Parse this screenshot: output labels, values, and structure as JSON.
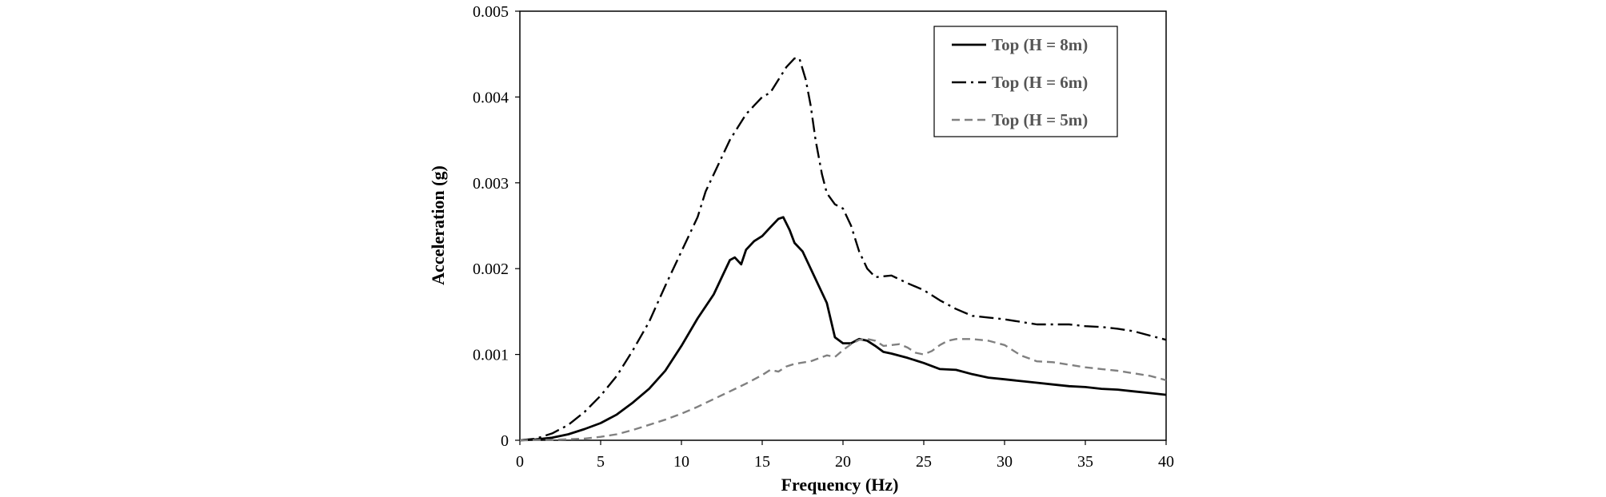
{
  "chart_data": {
    "type": "line",
    "xlabel": "Frequency (Hz)",
    "ylabel": "Acceleration (g)",
    "xlim": [
      0,
      40
    ],
    "ylim": [
      0,
      0.005
    ],
    "x_ticks": [
      "0",
      "5",
      "10",
      "15",
      "20",
      "25",
      "30",
      "35",
      "40"
    ],
    "y_ticks": [
      "0",
      "0.001",
      "0.002",
      "0.003",
      "0.004",
      "0.005"
    ],
    "grid": false,
    "legend_position": "top-right",
    "series": [
      {
        "name": "Top (H = 8m)",
        "style": "solid",
        "color": "#000000",
        "points": [
          [
            0,
            0
          ],
          [
            1,
            1e-05
          ],
          [
            2,
            3e-05
          ],
          [
            3,
            7e-05
          ],
          [
            4,
            0.00013
          ],
          [
            5,
            0.0002
          ],
          [
            6,
            0.0003
          ],
          [
            7,
            0.00044
          ],
          [
            8,
            0.0006
          ],
          [
            9,
            0.00081
          ],
          [
            10,
            0.0011
          ],
          [
            11,
            0.00142
          ],
          [
            12,
            0.0017
          ],
          [
            12.5,
            0.0019
          ],
          [
            13,
            0.0021
          ],
          [
            13.3,
            0.00213
          ],
          [
            13.7,
            0.00205
          ],
          [
            14,
            0.00222
          ],
          [
            14.5,
            0.00232
          ],
          [
            15,
            0.00238
          ],
          [
            15.5,
            0.00248
          ],
          [
            16,
            0.00258
          ],
          [
            16.3,
            0.0026
          ],
          [
            16.7,
            0.00245
          ],
          [
            17,
            0.0023
          ],
          [
            17.5,
            0.0022
          ],
          [
            18,
            0.002
          ],
          [
            18.5,
            0.0018
          ],
          [
            19,
            0.0016
          ],
          [
            19.5,
            0.0012
          ],
          [
            20,
            0.00113
          ],
          [
            20.5,
            0.00113
          ],
          [
            21,
            0.00118
          ],
          [
            21.5,
            0.00116
          ],
          [
            22,
            0.0011
          ],
          [
            22.5,
            0.00103
          ],
          [
            23,
            0.00101
          ],
          [
            24,
            0.00096
          ],
          [
            25,
            0.0009
          ],
          [
            26,
            0.00083
          ],
          [
            27,
            0.00082
          ],
          [
            28,
            0.00077
          ],
          [
            29,
            0.00073
          ],
          [
            30,
            0.00071
          ],
          [
            31,
            0.00069
          ],
          [
            32,
            0.00067
          ],
          [
            33,
            0.00065
          ],
          [
            34,
            0.00063
          ],
          [
            35,
            0.00062
          ],
          [
            36,
            0.0006
          ],
          [
            37,
            0.00059
          ],
          [
            38,
            0.00057
          ],
          [
            39,
            0.00055
          ],
          [
            40,
            0.00053
          ]
        ]
      },
      {
        "name": "Top (H = 6m)",
        "style": "dashdot",
        "color": "#000000",
        "points": [
          [
            0,
            0
          ],
          [
            1,
            2e-05
          ],
          [
            2,
            8e-05
          ],
          [
            3,
            0.00018
          ],
          [
            4,
            0.00033
          ],
          [
            5,
            0.00052
          ],
          [
            6,
            0.00075
          ],
          [
            7,
            0.00105
          ],
          [
            8,
            0.00138
          ],
          [
            9,
            0.0018
          ],
          [
            10,
            0.0022
          ],
          [
            11,
            0.0026
          ],
          [
            11.5,
            0.0029
          ],
          [
            12,
            0.0031
          ],
          [
            12.5,
            0.0033
          ],
          [
            13,
            0.0035
          ],
          [
            13.5,
            0.00365
          ],
          [
            14,
            0.0038
          ],
          [
            14.5,
            0.0039
          ],
          [
            15,
            0.004
          ],
          [
            15.5,
            0.00405
          ],
          [
            16,
            0.0042
          ],
          [
            16.5,
            0.00435
          ],
          [
            17,
            0.00445
          ],
          [
            17.3,
            0.00445
          ],
          [
            17.7,
            0.0042
          ],
          [
            18,
            0.0039
          ],
          [
            18.3,
            0.0035
          ],
          [
            18.7,
            0.0031
          ],
          [
            19,
            0.00288
          ],
          [
            19.5,
            0.00275
          ],
          [
            20,
            0.0027
          ],
          [
            20.5,
            0.0025
          ],
          [
            21,
            0.0022
          ],
          [
            21.5,
            0.002
          ],
          [
            22,
            0.0019
          ],
          [
            23,
            0.00192
          ],
          [
            24,
            0.00183
          ],
          [
            25,
            0.00175
          ],
          [
            26,
            0.00163
          ],
          [
            27,
            0.00153
          ],
          [
            28,
            0.00145
          ],
          [
            29,
            0.00143
          ],
          [
            30,
            0.00141
          ],
          [
            31,
            0.00138
          ],
          [
            32,
            0.00135
          ],
          [
            33,
            0.00135
          ],
          [
            34,
            0.00135
          ],
          [
            35,
            0.00133
          ],
          [
            36,
            0.00132
          ],
          [
            37,
            0.0013
          ],
          [
            38,
            0.00127
          ],
          [
            39,
            0.00122
          ],
          [
            40,
            0.00117
          ]
        ]
      },
      {
        "name": "Top (H = 5m)",
        "style": "dashed",
        "color": "#808080",
        "points": [
          [
            0,
            0
          ],
          [
            2,
            5e-06
          ],
          [
            4,
            2e-05
          ],
          [
            5,
            4e-05
          ],
          [
            6,
            7e-05
          ],
          [
            7,
            0.00012
          ],
          [
            8,
            0.00018
          ],
          [
            9,
            0.00024
          ],
          [
            10,
            0.00031
          ],
          [
            11,
            0.00039
          ],
          [
            12,
            0.00048
          ],
          [
            13,
            0.00057
          ],
          [
            14,
            0.00066
          ],
          [
            15,
            0.00076
          ],
          [
            15.5,
            0.00082
          ],
          [
            16,
            0.0008
          ],
          [
            16.5,
            0.00086
          ],
          [
            17,
            0.00089
          ],
          [
            18,
            0.00092
          ],
          [
            19,
            0.00099
          ],
          [
            19.5,
            0.00097
          ],
          [
            20,
            0.00105
          ],
          [
            20.5,
            0.00112
          ],
          [
            21,
            0.00117
          ],
          [
            21.5,
            0.00118
          ],
          [
            22,
            0.00116
          ],
          [
            22.5,
            0.0011
          ],
          [
            23,
            0.00111
          ],
          [
            23.5,
            0.00112
          ],
          [
            24,
            0.00108
          ],
          [
            24.5,
            0.00102
          ],
          [
            25,
            0.001
          ],
          [
            25.5,
            0.00104
          ],
          [
            26,
            0.00111
          ],
          [
            26.5,
            0.00116
          ],
          [
            27,
            0.00118
          ],
          [
            28,
            0.00118
          ],
          [
            29,
            0.00116
          ],
          [
            30,
            0.00111
          ],
          [
            31,
            0.00099
          ],
          [
            32,
            0.00092
          ],
          [
            33,
            0.00091
          ],
          [
            34,
            0.00088
          ],
          [
            35,
            0.00085
          ],
          [
            36,
            0.00083
          ],
          [
            37,
            0.00081
          ],
          [
            38,
            0.00078
          ],
          [
            39,
            0.00075
          ],
          [
            40,
            0.0007
          ]
        ]
      }
    ]
  }
}
